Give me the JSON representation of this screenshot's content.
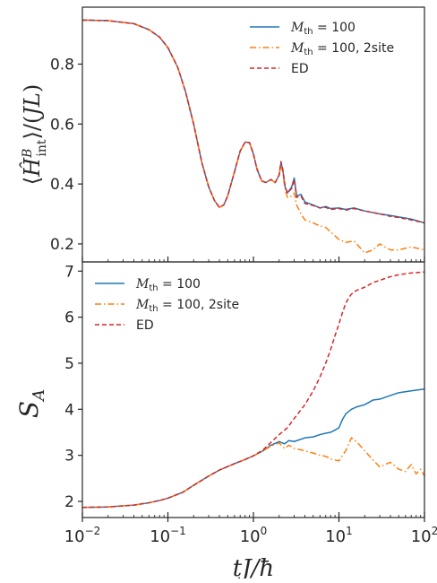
{
  "chart_data": [
    {
      "type": "line",
      "xscale": "log",
      "xlim": [
        0.01,
        100
      ],
      "ylim": [
        0.14,
        0.99
      ],
      "yticks": [
        0.2,
        0.4,
        0.6,
        0.8
      ],
      "ytick_labels": [
        "0.2",
        "0.4",
        "0.6",
        "0.8"
      ],
      "ylabel": "⟨Ĥ^B_int⟩/(JL)",
      "grid": false,
      "legend_position": "top-right",
      "series": [
        {
          "name": "M_th = 100",
          "color": "#1f77b4",
          "style": "solid",
          "x": [
            0.01,
            0.02,
            0.04,
            0.06,
            0.08,
            0.1,
            0.13,
            0.16,
            0.2,
            0.25,
            0.3,
            0.35,
            0.4,
            0.45,
            0.5,
            0.6,
            0.7,
            0.8,
            0.9,
            1.0,
            1.1,
            1.25,
            1.4,
            1.6,
            1.8,
            2.0,
            2.1,
            2.2,
            2.35,
            2.5,
            2.8,
            3.0,
            3.2,
            3.6,
            4,
            5,
            6,
            7,
            8,
            10,
            12,
            15,
            20,
            30,
            40,
            50,
            70,
            100
          ],
          "y": [
            0.947,
            0.945,
            0.935,
            0.915,
            0.89,
            0.855,
            0.79,
            0.71,
            0.6,
            0.47,
            0.39,
            0.345,
            0.322,
            0.33,
            0.36,
            0.44,
            0.51,
            0.54,
            0.538,
            0.5,
            0.45,
            0.41,
            0.405,
            0.415,
            0.405,
            0.43,
            0.47,
            0.45,
            0.39,
            0.37,
            0.39,
            0.42,
            0.36,
            0.365,
            0.34,
            0.33,
            0.32,
            0.325,
            0.318,
            0.32,
            0.315,
            0.32,
            0.31,
            0.3,
            0.295,
            0.29,
            0.283,
            0.27
          ]
        },
        {
          "name": "M_th = 100, 2site",
          "color": "#ff7f0e",
          "style": "dashdot",
          "x": [
            0.01,
            0.02,
            0.04,
            0.06,
            0.08,
            0.1,
            0.13,
            0.16,
            0.2,
            0.25,
            0.3,
            0.35,
            0.4,
            0.45,
            0.5,
            0.6,
            0.7,
            0.8,
            0.9,
            1.0,
            1.1,
            1.25,
            1.4,
            1.6,
            1.8,
            2.0,
            2.1,
            2.2,
            2.35,
            2.5,
            2.8,
            3.0,
            3.2,
            3.6,
            4,
            5,
            6,
            7,
            8,
            10,
            12,
            15,
            20,
            25,
            30,
            40,
            50,
            70,
            100
          ],
          "y": [
            0.947,
            0.945,
            0.935,
            0.915,
            0.89,
            0.855,
            0.79,
            0.71,
            0.6,
            0.47,
            0.39,
            0.345,
            0.322,
            0.33,
            0.36,
            0.44,
            0.51,
            0.54,
            0.538,
            0.5,
            0.45,
            0.41,
            0.405,
            0.415,
            0.405,
            0.43,
            0.465,
            0.44,
            0.38,
            0.355,
            0.36,
            0.37,
            0.33,
            0.3,
            0.28,
            0.27,
            0.26,
            0.255,
            0.24,
            0.215,
            0.205,
            0.21,
            0.17,
            0.18,
            0.2,
            0.18,
            0.18,
            0.19,
            0.18
          ]
        },
        {
          "name": "ED",
          "color": "#d62728",
          "style": "dashed",
          "x": [
            0.01,
            0.02,
            0.04,
            0.06,
            0.08,
            0.1,
            0.13,
            0.16,
            0.2,
            0.25,
            0.3,
            0.35,
            0.4,
            0.45,
            0.5,
            0.6,
            0.7,
            0.8,
            0.9,
            1.0,
            1.1,
            1.25,
            1.4,
            1.6,
            1.8,
            2.0,
            2.1,
            2.2,
            2.35,
            2.5,
            2.8,
            3.0,
            3.2,
            3.6,
            4,
            5,
            6,
            7,
            8,
            10,
            12,
            15,
            20,
            30,
            40,
            50,
            70,
            100
          ],
          "y": [
            0.947,
            0.945,
            0.935,
            0.915,
            0.89,
            0.855,
            0.79,
            0.71,
            0.6,
            0.47,
            0.39,
            0.345,
            0.322,
            0.33,
            0.36,
            0.44,
            0.51,
            0.54,
            0.538,
            0.5,
            0.45,
            0.41,
            0.405,
            0.415,
            0.405,
            0.43,
            0.475,
            0.45,
            0.39,
            0.37,
            0.385,
            0.415,
            0.355,
            0.36,
            0.335,
            0.328,
            0.32,
            0.322,
            0.315,
            0.318,
            0.313,
            0.318,
            0.31,
            0.3,
            0.292,
            0.288,
            0.28,
            0.27
          ]
        }
      ]
    },
    {
      "type": "line",
      "xscale": "log",
      "xlim": [
        0.01,
        100
      ],
      "ylim": [
        1.65,
        7.2
      ],
      "yticks": [
        2,
        3,
        4,
        5,
        6,
        7
      ],
      "ytick_labels": [
        "2",
        "3",
        "4",
        "5",
        "6",
        "7"
      ],
      "xticks": [
        0.01,
        0.1,
        1,
        10,
        100
      ],
      "xtick_labels": [
        [
          "10",
          "−2"
        ],
        [
          "10",
          "−1"
        ],
        [
          "10",
          "0"
        ],
        [
          "10",
          "1"
        ],
        [
          "10",
          "2"
        ]
      ],
      "xlabel": "tJ/ħ",
      "ylabel": "S_A",
      "grid": false,
      "legend_position": "top-left",
      "series": [
        {
          "name": "M_th = 100",
          "color": "#1f77b4",
          "style": "solid",
          "x": [
            0.01,
            0.02,
            0.04,
            0.06,
            0.08,
            0.1,
            0.15,
            0.2,
            0.3,
            0.4,
            0.6,
            0.8,
            1.0,
            1.3,
            1.6,
            2.0,
            2.3,
            2.6,
            3,
            4,
            5,
            6,
            7,
            8,
            9,
            10,
            11,
            12,
            14,
            16,
            20,
            25,
            30,
            40,
            50,
            70,
            100
          ],
          "y": [
            1.87,
            1.88,
            1.92,
            1.97,
            2.02,
            2.07,
            2.2,
            2.35,
            2.55,
            2.68,
            2.82,
            2.91,
            2.99,
            3.1,
            3.22,
            3.3,
            3.25,
            3.32,
            3.3,
            3.38,
            3.4,
            3.45,
            3.48,
            3.5,
            3.55,
            3.6,
            3.78,
            3.9,
            4.0,
            4.05,
            4.1,
            4.2,
            4.22,
            4.3,
            4.36,
            4.4,
            4.44
          ]
        },
        {
          "name": "M_th = 100, 2site",
          "color": "#ff7f0e",
          "style": "dashdot",
          "x": [
            0.01,
            0.02,
            0.04,
            0.06,
            0.08,
            0.1,
            0.15,
            0.2,
            0.3,
            0.4,
            0.6,
            0.8,
            1.0,
            1.3,
            1.6,
            2.0,
            2.3,
            2.6,
            3,
            4,
            5,
            6,
            7,
            8,
            10,
            12,
            14,
            16,
            20,
            25,
            30,
            40,
            50,
            60,
            70,
            80,
            90,
            100
          ],
          "y": [
            1.87,
            1.88,
            1.92,
            1.97,
            2.02,
            2.07,
            2.2,
            2.35,
            2.55,
            2.68,
            2.82,
            2.91,
            2.99,
            3.1,
            3.2,
            3.27,
            3.15,
            3.22,
            3.15,
            3.1,
            3.05,
            3.0,
            2.98,
            2.92,
            2.88,
            3.1,
            3.38,
            3.3,
            3.1,
            2.9,
            2.75,
            2.85,
            2.7,
            2.65,
            2.8,
            2.6,
            2.7,
            2.55
          ]
        },
        {
          "name": "ED",
          "color": "#d62728",
          "style": "dashed",
          "x": [
            0.01,
            0.02,
            0.04,
            0.06,
            0.08,
            0.1,
            0.15,
            0.2,
            0.3,
            0.4,
            0.6,
            0.8,
            1.0,
            1.3,
            1.6,
            2.0,
            2.5,
            3,
            4,
            5,
            6,
            7,
            8,
            9,
            10,
            11,
            12,
            13,
            14,
            16,
            20,
            25,
            30,
            40,
            50,
            70,
            100
          ],
          "y": [
            1.87,
            1.88,
            1.92,
            1.97,
            2.02,
            2.07,
            2.2,
            2.35,
            2.55,
            2.68,
            2.82,
            2.91,
            2.99,
            3.12,
            3.28,
            3.45,
            3.6,
            3.8,
            4.1,
            4.4,
            4.7,
            5.0,
            5.3,
            5.6,
            5.85,
            6.1,
            6.3,
            6.42,
            6.5,
            6.58,
            6.65,
            6.75,
            6.8,
            6.88,
            6.92,
            6.96,
            6.98
          ]
        }
      ]
    }
  ]
}
